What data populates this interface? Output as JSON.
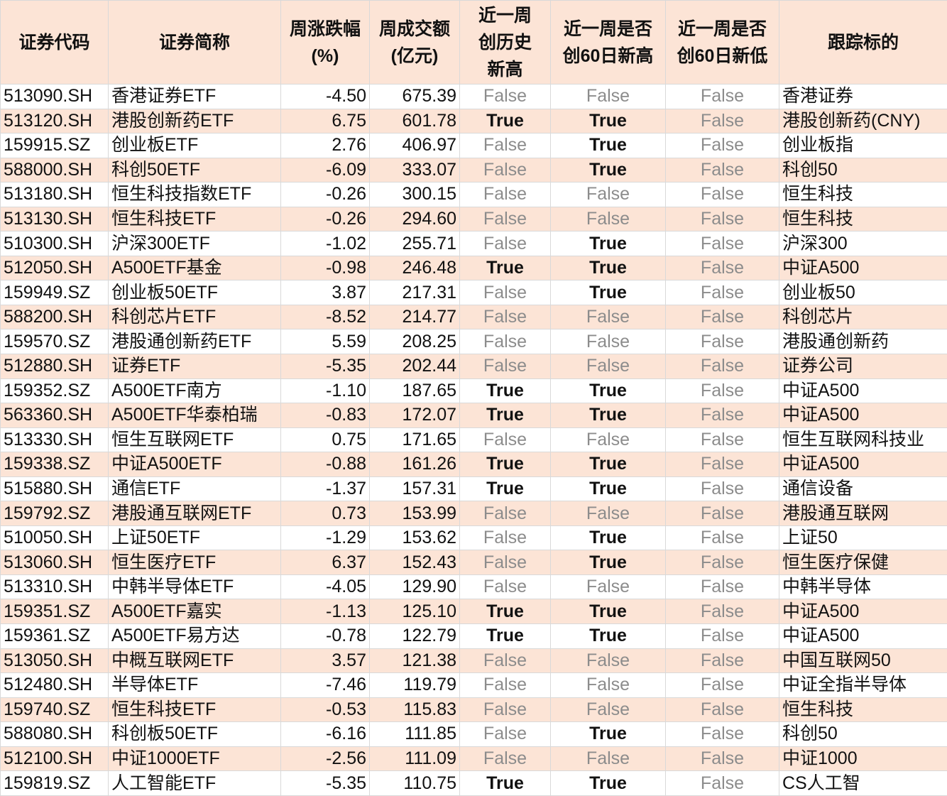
{
  "headers": [
    "证券代码",
    "证券简称",
    "周涨跌幅\n(%)",
    "周成交额\n(亿元)",
    "近一周\n创历史\n新高",
    "近一周是否\n创60日新高",
    "近一周是否\n创60日新低",
    "跟踪标的"
  ],
  "colors": {
    "header_bg": "#fce4d6",
    "alt_row_bg": "#fce4d6",
    "false_text": "#8c8c8c",
    "true_text": "#111111"
  },
  "rows": [
    [
      "513090.SH",
      "香港证券ETF",
      "-4.50",
      "675.39",
      "False",
      "False",
      "False",
      "香港证券"
    ],
    [
      "513120.SH",
      "港股创新药ETF",
      "6.75",
      "601.78",
      "True",
      "True",
      "False",
      "港股创新药(CNY)"
    ],
    [
      "159915.SZ",
      "创业板ETF",
      "2.76",
      "406.97",
      "False",
      "True",
      "False",
      "创业板指"
    ],
    [
      "588000.SH",
      "科创50ETF",
      "-6.09",
      "333.07",
      "False",
      "True",
      "False",
      "科创50"
    ],
    [
      "513180.SH",
      "恒生科技指数ETF",
      "-0.26",
      "300.15",
      "False",
      "False",
      "False",
      "恒生科技"
    ],
    [
      "513130.SH",
      "恒生科技ETF",
      "-0.26",
      "294.60",
      "False",
      "False",
      "False",
      "恒生科技"
    ],
    [
      "510300.SH",
      "沪深300ETF",
      "-1.02",
      "255.71",
      "False",
      "True",
      "False",
      "沪深300"
    ],
    [
      "512050.SH",
      "A500ETF基金",
      "-0.98",
      "246.48",
      "True",
      "True",
      "False",
      "中证A500"
    ],
    [
      "159949.SZ",
      "创业板50ETF",
      "3.87",
      "217.31",
      "False",
      "True",
      "False",
      "创业板50"
    ],
    [
      "588200.SH",
      "科创芯片ETF",
      "-8.52",
      "214.77",
      "False",
      "False",
      "False",
      "科创芯片"
    ],
    [
      "159570.SZ",
      "港股通创新药ETF",
      "5.59",
      "208.25",
      "False",
      "False",
      "False",
      "港股通创新药"
    ],
    [
      "512880.SH",
      "证券ETF",
      "-5.35",
      "202.44",
      "False",
      "False",
      "False",
      "证券公司"
    ],
    [
      "159352.SZ",
      "A500ETF南方",
      "-1.10",
      "187.65",
      "True",
      "True",
      "False",
      "中证A500"
    ],
    [
      "563360.SH",
      "A500ETF华泰柏瑞",
      "-0.83",
      "172.07",
      "True",
      "True",
      "False",
      "中证A500"
    ],
    [
      "513330.SH",
      "恒生互联网ETF",
      "0.75",
      "171.65",
      "False",
      "False",
      "False",
      "恒生互联网科技业"
    ],
    [
      "159338.SZ",
      "中证A500ETF",
      "-0.88",
      "161.26",
      "True",
      "True",
      "False",
      "中证A500"
    ],
    [
      "515880.SH",
      "通信ETF",
      "-1.37",
      "157.31",
      "True",
      "True",
      "False",
      "通信设备"
    ],
    [
      "159792.SZ",
      "港股通互联网ETF",
      "0.73",
      "153.99",
      "False",
      "False",
      "False",
      "港股通互联网"
    ],
    [
      "510050.SH",
      "上证50ETF",
      "-1.29",
      "153.62",
      "False",
      "True",
      "False",
      "上证50"
    ],
    [
      "513060.SH",
      "恒生医疗ETF",
      "6.37",
      "152.43",
      "False",
      "True",
      "False",
      "恒生医疗保健"
    ],
    [
      "513310.SH",
      "中韩半导体ETF",
      "-4.05",
      "129.90",
      "False",
      "False",
      "False",
      "中韩半导体"
    ],
    [
      "159351.SZ",
      "A500ETF嘉实",
      "-1.13",
      "125.10",
      "True",
      "True",
      "False",
      "中证A500"
    ],
    [
      "159361.SZ",
      "A500ETF易方达",
      "-0.78",
      "122.79",
      "True",
      "True",
      "False",
      "中证A500"
    ],
    [
      "513050.SH",
      "中概互联网ETF",
      "3.57",
      "121.38",
      "False",
      "False",
      "False",
      "中国互联网50"
    ],
    [
      "512480.SH",
      "半导体ETF",
      "-7.46",
      "119.79",
      "False",
      "False",
      "False",
      "中证全指半导体"
    ],
    [
      "159740.SZ",
      "恒生科技ETF",
      "-0.53",
      "115.83",
      "False",
      "False",
      "False",
      "恒生科技"
    ],
    [
      "588080.SH",
      "科创板50ETF",
      "-6.16",
      "111.85",
      "False",
      "True",
      "False",
      "科创50"
    ],
    [
      "512100.SH",
      "中证1000ETF",
      "-2.56",
      "111.09",
      "False",
      "False",
      "False",
      "中证1000"
    ],
    [
      "159819.SZ",
      "人工智能ETF",
      "-5.35",
      "110.75",
      "True",
      "True",
      "False",
      "CS人工智"
    ]
  ]
}
